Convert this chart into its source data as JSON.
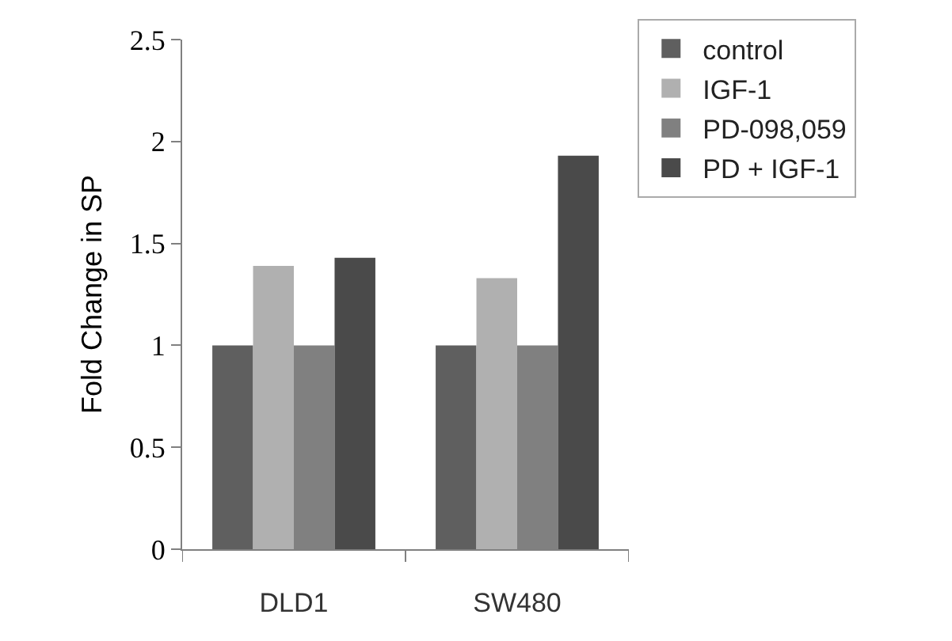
{
  "chart_data": {
    "type": "bar",
    "ylabel": "Fold Change in SP",
    "categories": [
      "DLD1",
      "SW480"
    ],
    "series": [
      {
        "name": "control",
        "color": "#5f5f5f",
        "values": [
          1.0,
          1.0
        ]
      },
      {
        "name": "IGF-1",
        "color": "#b0b0b0",
        "values": [
          1.39,
          1.33
        ]
      },
      {
        "name": "PD-098,059",
        "color": "#808080",
        "values": [
          1.0,
          1.0
        ]
      },
      {
        "name": "PD + IGF-1",
        "color": "#4a4a4a",
        "values": [
          1.43,
          1.93
        ]
      }
    ],
    "ylim": [
      0,
      2.5
    ],
    "yticks": [
      0,
      0.5,
      1,
      1.5,
      2,
      2.5
    ],
    "legend": "top right"
  }
}
